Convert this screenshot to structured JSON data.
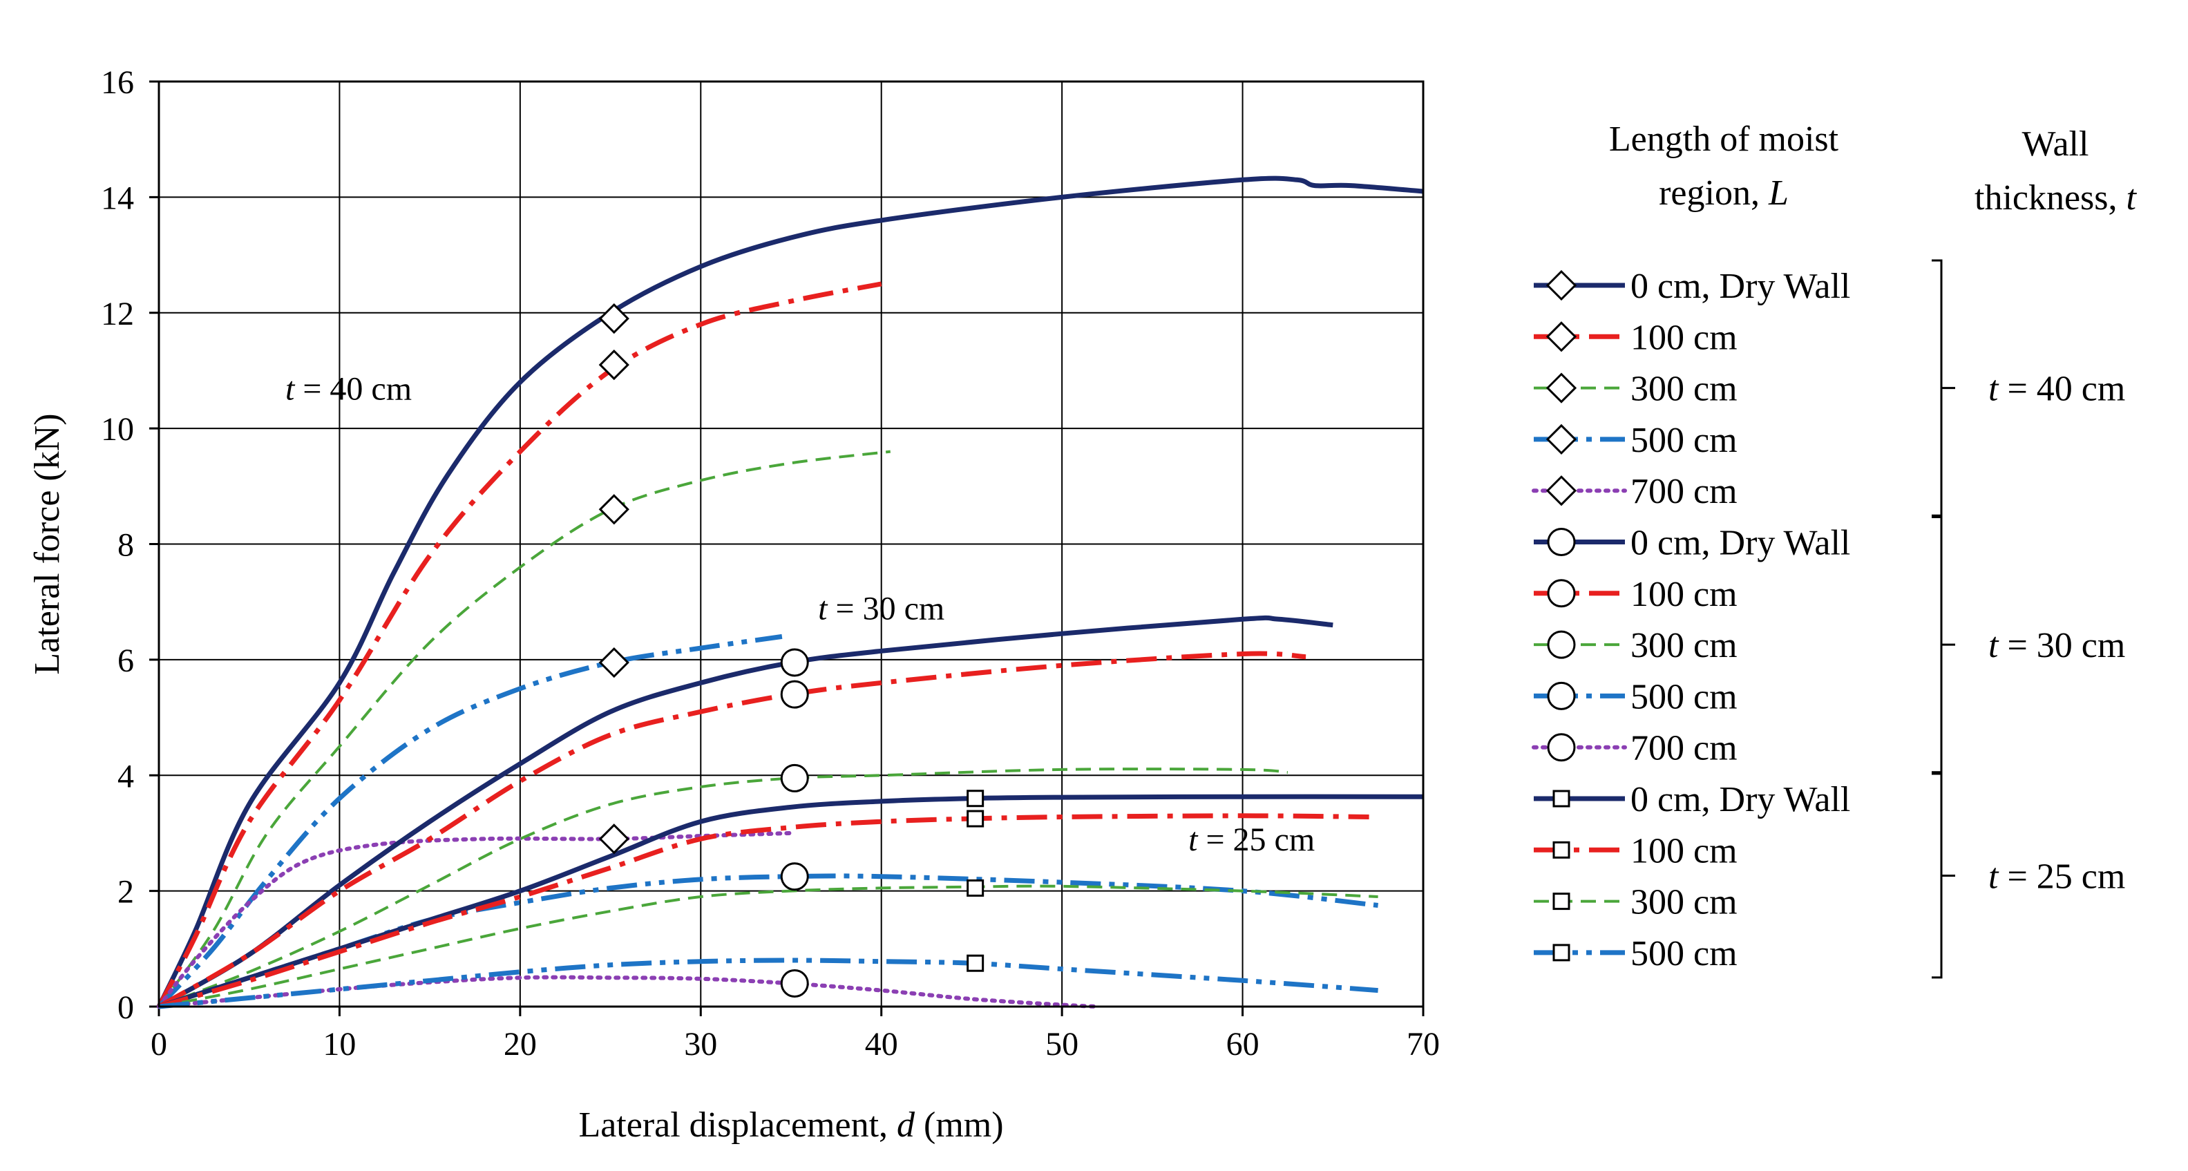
{
  "chart_data": {
    "type": "line",
    "xlabel_prefix": "Lateral displacement, ",
    "xlabel_var": "d",
    "xlabel_suffix": " (mm)",
    "ylabel": "Lateral force (kN)",
    "xlim": [
      0,
      70
    ],
    "ylim": [
      0,
      16
    ],
    "xticks": [
      0,
      10,
      20,
      30,
      40,
      50,
      60,
      70
    ],
    "yticks": [
      0,
      2,
      4,
      6,
      8,
      10,
      12,
      14,
      16
    ],
    "grid": true,
    "legend_title_L": [
      "Length of moist",
      "region, L"
    ],
    "legend_title_t": [
      "Wall",
      "thickness, t"
    ],
    "annotations": [
      {
        "prefix": "t",
        "text": " = 40 cm",
        "x": 10.5,
        "y": 10.5
      },
      {
        "prefix": "t",
        "text": " = 30 cm",
        "x": 40,
        "y": 6.7
      },
      {
        "prefix": "t",
        "text": " = 25 cm",
        "x": 60.5,
        "y": 2.7
      }
    ],
    "groups": [
      {
        "label_prefix": "t",
        "label": " = 40 cm"
      },
      {
        "label_prefix": "t",
        "label": " = 30 cm"
      },
      {
        "label_prefix": "t",
        "label": " = 25 cm"
      }
    ],
    "series": [
      {
        "name": "0 cm, Dry Wall",
        "group": 0,
        "style": "solid",
        "color": "#1b2a6b",
        "marker": "diamond",
        "marker_point": [
          25.2,
          11.9
        ],
        "x": [
          0,
          2,
          5,
          10,
          13,
          16,
          20,
          25,
          30,
          35,
          40,
          50,
          60,
          63,
          64,
          66,
          70
        ],
        "y": [
          0,
          1.3,
          3.5,
          5.6,
          7.5,
          9.2,
          10.8,
          12.0,
          12.8,
          13.3,
          13.6,
          14.0,
          14.3,
          14.3,
          14.2,
          14.2,
          14.1
        ]
      },
      {
        "name": "100 cm",
        "group": 0,
        "style": "dashdot",
        "color": "#e8201f",
        "marker": "diamond",
        "marker_point": [
          25.2,
          11.1
        ],
        "x": [
          0,
          2,
          5,
          10,
          15,
          20,
          25,
          30,
          35,
          40
        ],
        "y": [
          0,
          1.2,
          3.2,
          5.3,
          7.8,
          9.6,
          11.0,
          11.8,
          12.2,
          12.5
        ]
      },
      {
        "name": "300 cm",
        "group": 0,
        "style": "dashed",
        "color": "#4aa63a",
        "marker": "diamond",
        "marker_point": [
          25.2,
          8.6
        ],
        "x": [
          0,
          3,
          6,
          10,
          15,
          20,
          25,
          30,
          35,
          40.5
        ],
        "y": [
          0,
          1.3,
          3.0,
          4.5,
          6.3,
          7.6,
          8.6,
          9.1,
          9.4,
          9.6
        ]
      },
      {
        "name": "500 cm",
        "group": 0,
        "style": "dashdotdot",
        "color": "#1e74c6",
        "marker": "diamond",
        "marker_point": [
          25.2,
          5.95
        ],
        "x": [
          0,
          3,
          6,
          10,
          15,
          20,
          25,
          30,
          34.5
        ],
        "y": [
          0,
          1.0,
          2.2,
          3.6,
          4.8,
          5.5,
          5.95,
          6.2,
          6.4
        ]
      },
      {
        "name": "700 cm",
        "group": 0,
        "style": "dotted",
        "color": "#8b3fb3",
        "marker": "diamond",
        "marker_point": [
          25.2,
          2.9
        ],
        "x": [
          0,
          2,
          5,
          8,
          12,
          18,
          25,
          30,
          35
        ],
        "y": [
          0,
          0.8,
          1.8,
          2.5,
          2.8,
          2.9,
          2.9,
          2.95,
          3.0
        ]
      },
      {
        "name": "0 cm, Dry Wall",
        "group": 1,
        "style": "solid",
        "color": "#1b2a6b",
        "marker": "circle",
        "marker_point": [
          35.2,
          5.95
        ],
        "x": [
          0,
          5,
          10,
          15,
          20,
          25,
          30,
          35,
          40,
          50,
          60,
          62,
          65
        ],
        "y": [
          0,
          0.9,
          2.1,
          3.2,
          4.2,
          5.1,
          5.6,
          5.95,
          6.15,
          6.45,
          6.7,
          6.7,
          6.6
        ]
      },
      {
        "name": "100 cm",
        "group": 1,
        "style": "dashdot",
        "color": "#e8201f",
        "marker": "circle",
        "marker_point": [
          35.2,
          5.4
        ],
        "x": [
          0,
          5,
          10,
          15,
          20,
          25,
          30,
          35,
          40,
          50,
          60,
          63.5
        ],
        "y": [
          0,
          0.9,
          2.0,
          2.9,
          3.9,
          4.7,
          5.1,
          5.4,
          5.6,
          5.9,
          6.1,
          6.05
        ]
      },
      {
        "name": "300 cm",
        "group": 1,
        "style": "dashed",
        "color": "#4aa63a",
        "marker": "circle",
        "marker_point": [
          35.2,
          3.95
        ],
        "x": [
          0,
          5,
          10,
          15,
          20,
          25,
          30,
          35,
          40,
          50,
          60,
          62.5
        ],
        "y": [
          0,
          0.6,
          1.3,
          2.1,
          2.9,
          3.5,
          3.8,
          3.95,
          4.0,
          4.1,
          4.1,
          4.05
        ]
      },
      {
        "name": "500 cm",
        "group": 1,
        "style": "dashdotdot",
        "color": "#1e74c6",
        "marker": "circle",
        "marker_point": [
          35.2,
          2.25
        ],
        "x": [
          0,
          5,
          10,
          15,
          20,
          25,
          30,
          35,
          40,
          50,
          60,
          67.5
        ],
        "y": [
          0,
          0.5,
          1.0,
          1.5,
          1.8,
          2.05,
          2.2,
          2.25,
          2.25,
          2.15,
          2.0,
          1.75
        ]
      },
      {
        "name": "700 cm",
        "group": 1,
        "style": "dotted",
        "color": "#8b3fb3",
        "marker": "circle",
        "marker_point": [
          35.2,
          0.4
        ],
        "x": [
          0,
          5,
          10,
          15,
          20,
          25,
          30,
          35,
          40,
          45,
          50,
          52
        ],
        "y": [
          0,
          0.15,
          0.3,
          0.42,
          0.5,
          0.5,
          0.48,
          0.4,
          0.28,
          0.13,
          0.03,
          0
        ]
      },
      {
        "name": "0 cm, Dry Wall",
        "group": 2,
        "style": "solid",
        "color": "#1b2a6b",
        "marker": "square",
        "marker_point": [
          45.2,
          3.6
        ],
        "x": [
          0,
          5,
          10,
          15,
          20,
          25,
          30,
          35,
          40,
          45,
          50,
          60,
          70
        ],
        "y": [
          0,
          0.5,
          1.0,
          1.5,
          2.0,
          2.6,
          3.2,
          3.45,
          3.55,
          3.6,
          3.62,
          3.63,
          3.63
        ]
      },
      {
        "name": "100 cm",
        "group": 2,
        "style": "dashdot",
        "color": "#e8201f",
        "marker": "square",
        "marker_point": [
          45.2,
          3.25
        ],
        "x": [
          0,
          5,
          10,
          15,
          20,
          25,
          30,
          35,
          40,
          45,
          50,
          60,
          67
        ],
        "y": [
          0,
          0.45,
          0.95,
          1.45,
          1.9,
          2.4,
          2.9,
          3.1,
          3.2,
          3.25,
          3.28,
          3.3,
          3.28
        ]
      },
      {
        "name": "300 cm",
        "group": 2,
        "style": "dashed",
        "color": "#4aa63a",
        "marker": "square",
        "marker_point": [
          45.2,
          2.05
        ],
        "x": [
          0,
          5,
          10,
          15,
          20,
          25,
          30,
          35,
          40,
          45,
          50,
          60,
          67.5
        ],
        "y": [
          0,
          0.3,
          0.65,
          1.0,
          1.35,
          1.65,
          1.9,
          2.0,
          2.05,
          2.07,
          2.08,
          2.0,
          1.9
        ]
      },
      {
        "name": "500 cm",
        "group": 2,
        "style": "dashdotdot",
        "color": "#1e74c6",
        "marker": "square",
        "marker_point": [
          45.2,
          0.75
        ],
        "x": [
          0,
          5,
          10,
          15,
          20,
          25,
          30,
          35,
          40,
          45,
          50,
          60,
          67.5
        ],
        "y": [
          0,
          0.15,
          0.3,
          0.45,
          0.6,
          0.72,
          0.78,
          0.8,
          0.78,
          0.75,
          0.65,
          0.45,
          0.28
        ]
      }
    ]
  }
}
